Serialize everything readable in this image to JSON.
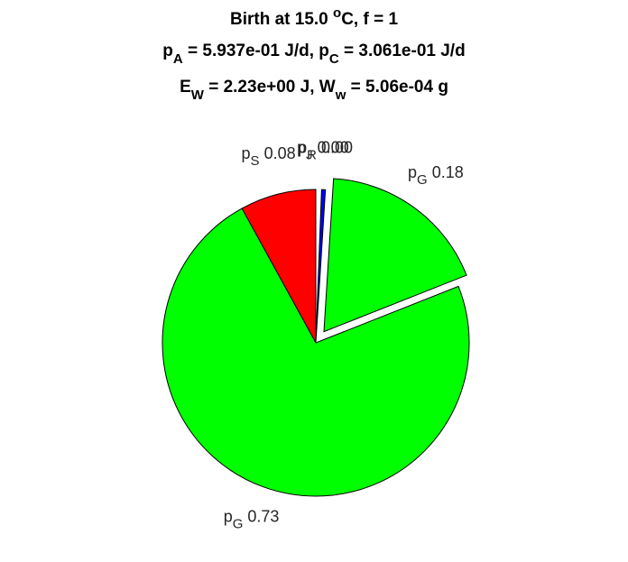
{
  "chart_data": {
    "type": "pie",
    "title_lines": [
      [
        {
          "text": "Birth at 15.0 "
        },
        {
          "text": "o",
          "pos": "sup"
        },
        {
          "text": "C, f = 1"
        }
      ],
      [
        {
          "text": "p"
        },
        {
          "text": "A",
          "pos": "sub"
        },
        {
          "text": " = 5.937e-01 J/d, p"
        },
        {
          "text": "C",
          "pos": "sub"
        },
        {
          "text": " = 3.061e-01 J/d"
        }
      ],
      [
        {
          "text": "E"
        },
        {
          "text": "W",
          "pos": "sub"
        },
        {
          "text": " = 2.23e+00 J, W"
        },
        {
          "text": "w",
          "pos": "sub"
        },
        {
          "text": " = 5.06e-04 g"
        }
      ]
    ],
    "names": [
      "p",
      "p",
      "p",
      "p",
      "p"
    ],
    "subscripts": [
      "S",
      "G",
      "G",
      "R",
      "J"
    ],
    "values": [
      0.08,
      0.73,
      0.18,
      0.004,
      0
    ],
    "value_labels": [
      "0.08",
      "0.73",
      "0.18",
      "0.00",
      "0.00"
    ],
    "colors": [
      "#ff0000",
      "#00ff00",
      "#00ff00",
      "#0000ff",
      "#0000ff"
    ],
    "explode": [
      false,
      false,
      true,
      false,
      false
    ],
    "start_angle": 90,
    "direction": "counterclockwise"
  }
}
